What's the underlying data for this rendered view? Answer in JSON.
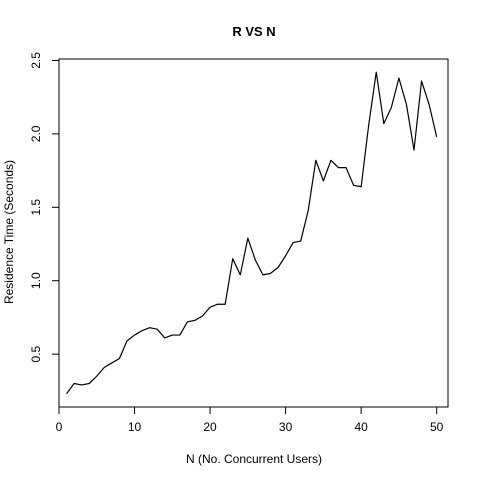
{
  "chart_data": {
    "type": "line",
    "title": "R VS N",
    "xlabel": "N (No. Concurrent Users)",
    "ylabel": "Residence Time (Seconds)",
    "xlim": [
      0,
      51.5
    ],
    "ylim": [
      0.14,
      2.51
    ],
    "xticks": [
      0,
      10,
      20,
      30,
      40,
      50
    ],
    "yticks": [
      0.5,
      1.0,
      1.5,
      2.0,
      2.5
    ],
    "xtick_labels": [
      "0",
      "10",
      "20",
      "30",
      "40",
      "50"
    ],
    "ytick_labels": [
      "0.5",
      "1.0",
      "1.5",
      "2.0",
      "2.5"
    ],
    "grid": false,
    "series": [
      {
        "color": "#000000",
        "x": [
          1,
          2,
          3,
          4,
          5,
          6,
          7,
          8,
          9,
          10,
          11,
          12,
          13,
          14,
          15,
          16,
          17,
          18,
          19,
          20,
          21,
          22,
          23,
          24,
          25,
          26,
          27,
          28,
          29,
          30,
          31,
          32,
          33,
          34,
          35,
          36,
          37,
          38,
          39,
          40,
          41,
          42,
          43,
          44,
          45,
          46,
          47,
          48,
          49,
          50
        ],
        "y": [
          0.23,
          0.3,
          0.29,
          0.3,
          0.35,
          0.41,
          0.44,
          0.47,
          0.59,
          0.63,
          0.66,
          0.68,
          0.67,
          0.61,
          0.63,
          0.63,
          0.72,
          0.73,
          0.76,
          0.82,
          0.84,
          0.84,
          1.15,
          1.04,
          1.29,
          1.14,
          1.04,
          1.05,
          1.09,
          1.17,
          1.26,
          1.27,
          1.48,
          1.82,
          1.68,
          1.82,
          1.77,
          1.77,
          1.65,
          1.64,
          2.06,
          2.42,
          2.07,
          2.18,
          2.38,
          2.2,
          1.89,
          2.36,
          2.2,
          1.98
        ]
      }
    ]
  }
}
